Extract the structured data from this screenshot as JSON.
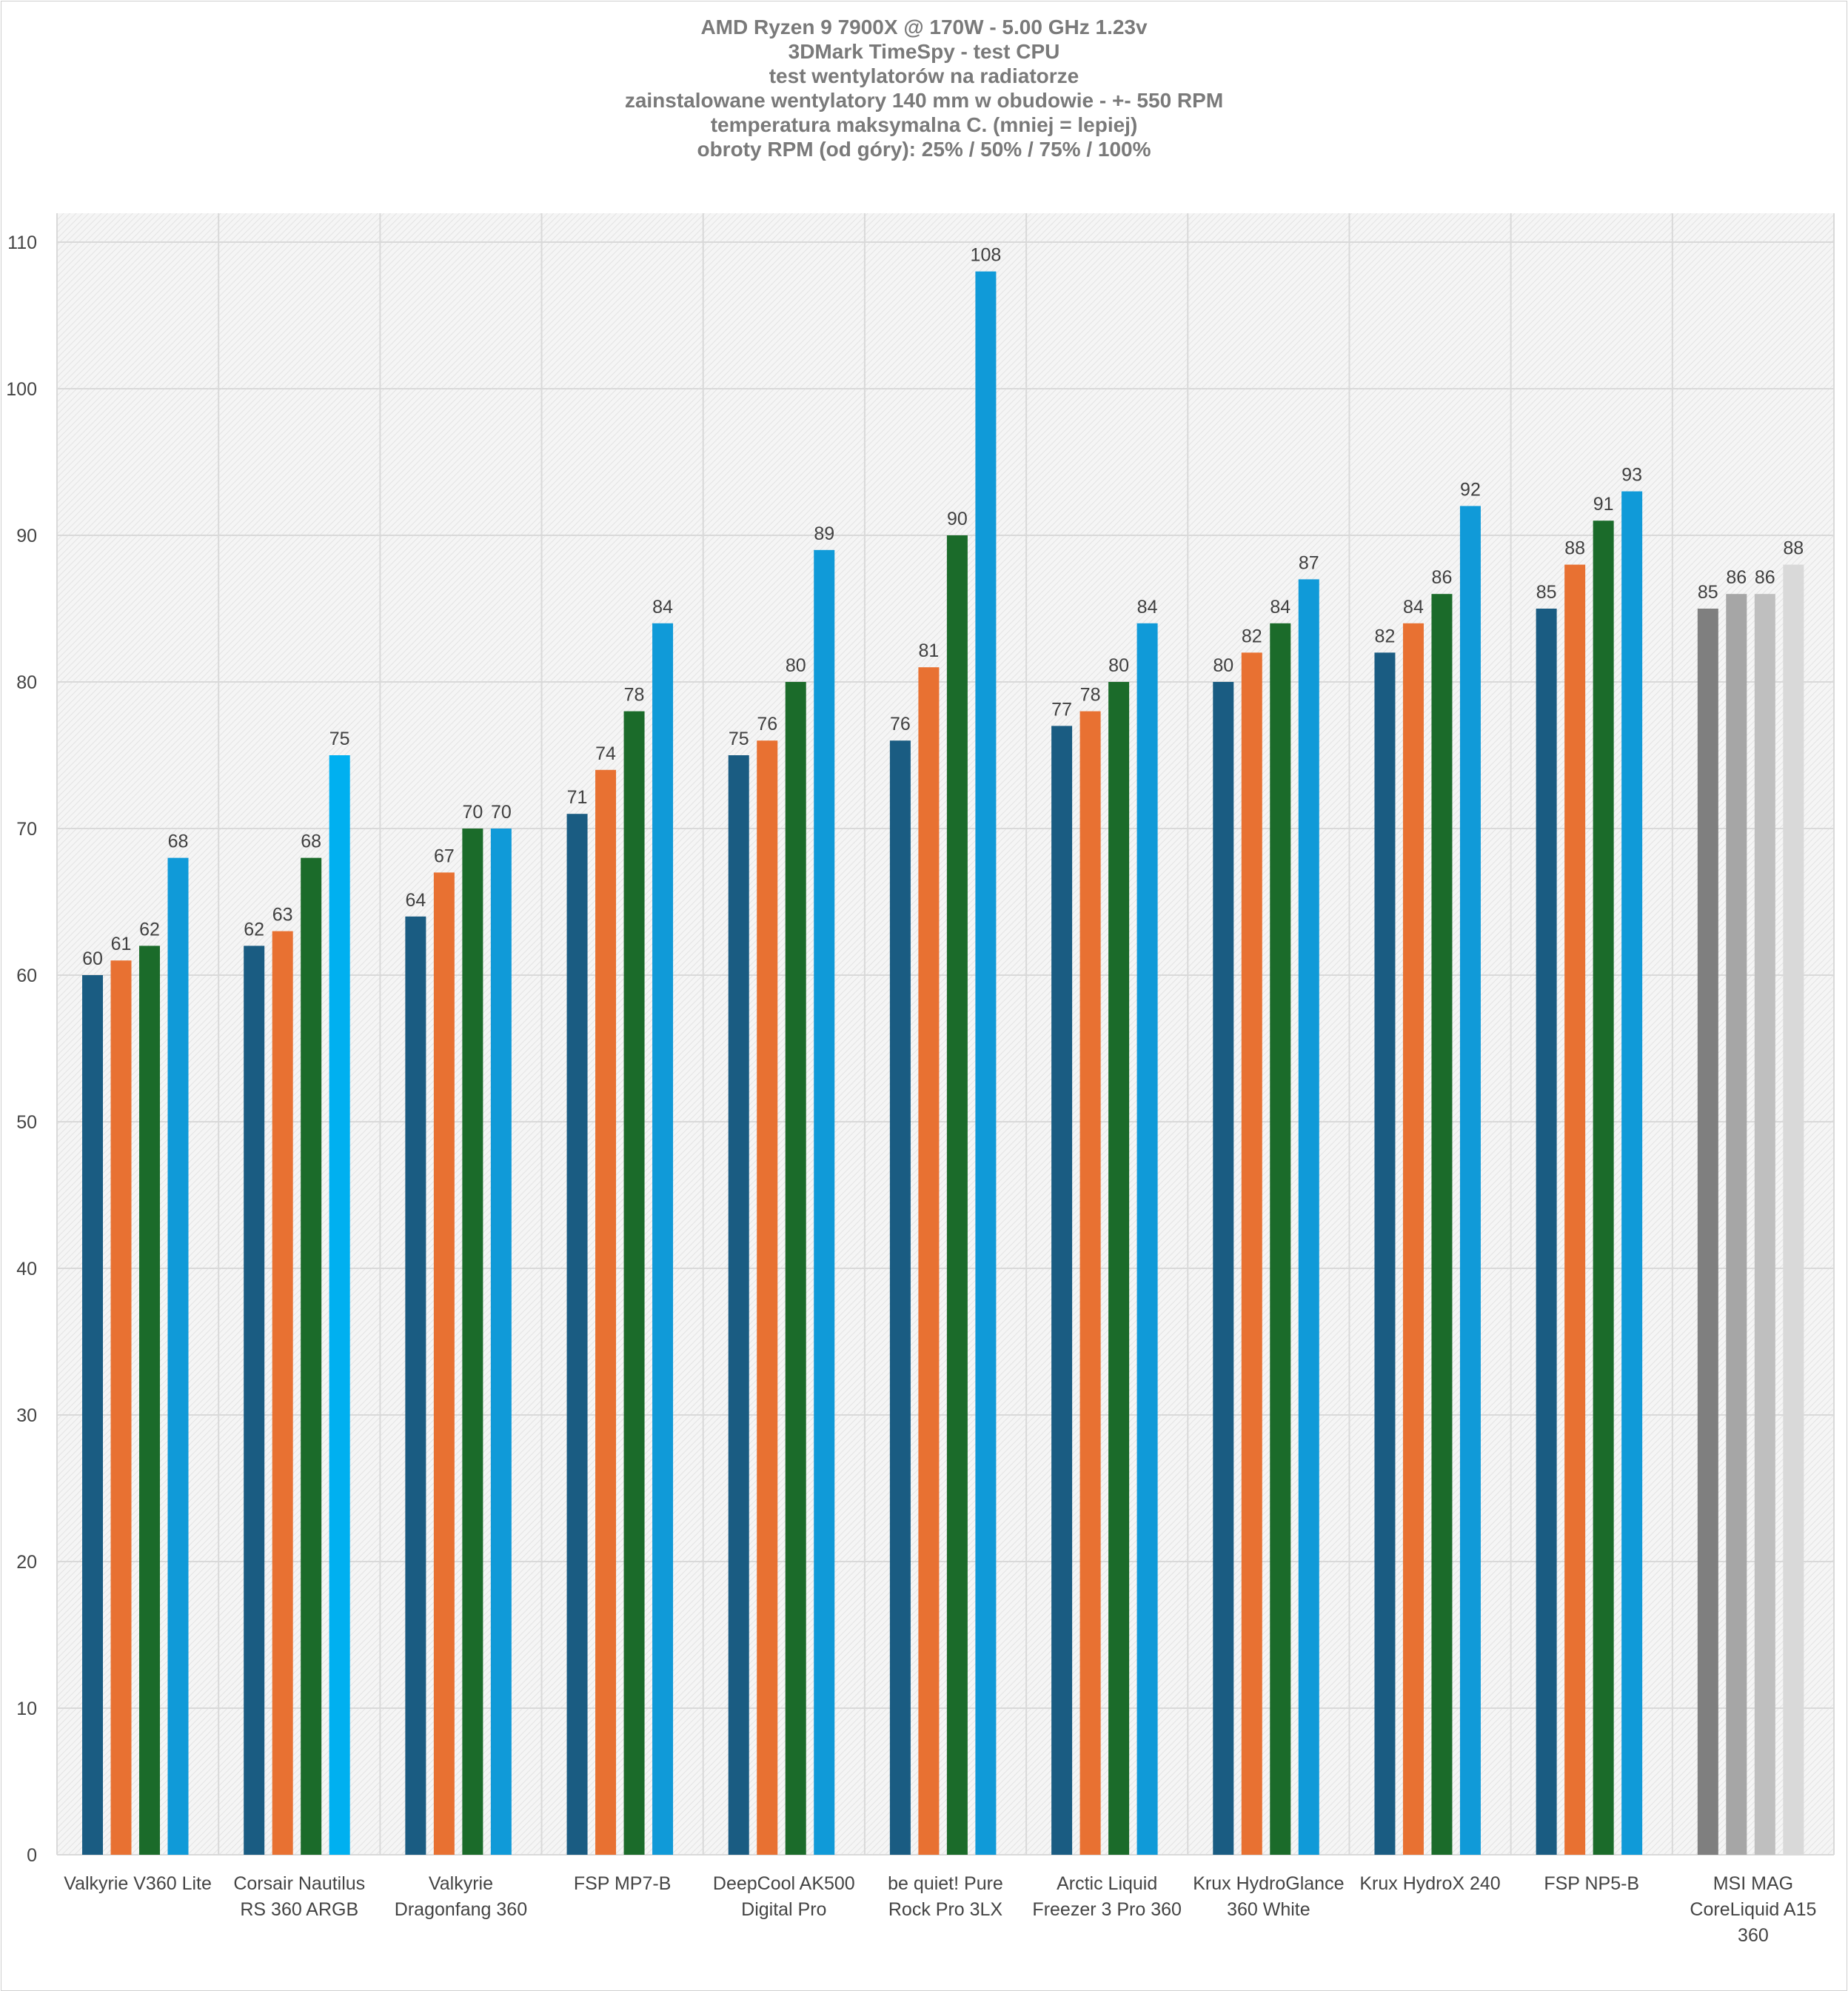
{
  "chart_data": {
    "type": "bar",
    "title_lines": [
      "AMD Ryzen 9 7900X @ 170W - 5.00 GHz 1.23v",
      "3DMark TimeSpy - test CPU",
      "test wentylatorów na radiatorze",
      "zainstalowane wentylatory 140 mm w obudowie - +- 550 RPM",
      "temperatura maksymalna C. (mniej = lepiej)",
      "obroty RPM (od góry): 25% / 50% / 75% / 100%"
    ],
    "xlabel": "",
    "ylabel": "",
    "ylim": [
      0,
      110
    ],
    "yticks": [
      0,
      10,
      20,
      30,
      40,
      50,
      60,
      70,
      80,
      90,
      100,
      110
    ],
    "grid": true,
    "legend": "none",
    "categories": [
      [
        "Valkyrie V360 Lite"
      ],
      [
        "Corsair Nautilus",
        "RS 360 ARGB"
      ],
      [
        "Valkyrie",
        "Dragonfang 360"
      ],
      [
        "FSP MP7-B"
      ],
      [
        "DeepCool AK500",
        "Digital Pro"
      ],
      [
        "be quiet! Pure",
        "Rock Pro 3LX"
      ],
      [
        "Arctic Liquid",
        "Freezer 3 Pro 360"
      ],
      [
        "Krux HydroGlance",
        "360 White"
      ],
      [
        "Krux HydroX 240"
      ],
      [
        "FSP NP5-B"
      ],
      [
        "MSI MAG",
        "CoreLiquid A15",
        "360"
      ]
    ],
    "series": [
      {
        "name": "25%",
        "values": [
          60,
          62,
          64,
          71,
          75,
          76,
          77,
          80,
          82,
          85,
          85
        ]
      },
      {
        "name": "50%",
        "values": [
          61,
          63,
          67,
          74,
          76,
          81,
          78,
          82,
          84,
          88,
          86
        ]
      },
      {
        "name": "75%",
        "values": [
          62,
          68,
          70,
          78,
          80,
          90,
          80,
          84,
          86,
          91,
          86
        ]
      },
      {
        "name": "100%",
        "values": [
          68,
          75,
          70,
          84,
          89,
          108,
          84,
          87,
          92,
          93,
          88
        ]
      }
    ],
    "colors": {
      "series": [
        "#1a5c82",
        "#e87132",
        "#1b6b2a",
        "#109ad8"
      ],
      "reference_category_colors": [
        "#7f7f7f",
        "#a6a6a6",
        "#bfbfbf",
        "#d9d9d9"
      ],
      "corsair_100_color": "#00b0f0",
      "grid": "#d9d9d9",
      "title": "#7a7a7a",
      "plot_background": "#f2f2f2"
    }
  }
}
